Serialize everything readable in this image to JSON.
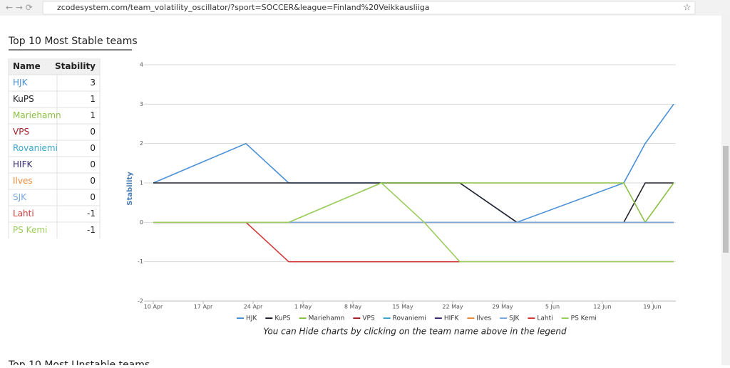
{
  "browser": {
    "url": "zcodesystem.com/team_volatility_oscillator/?sport=SOCCER&league=Finland%20Veikkausliiga"
  },
  "section_title": "Top 10 Most Stable teams",
  "table": {
    "header": [
      "Name",
      "Stability"
    ],
    "rows": [
      [
        "HJK",
        3
      ],
      [
        "KuPS",
        1
      ],
      [
        "Mariehamn",
        1
      ],
      [
        "VPS",
        0
      ],
      [
        "Rovaniemi",
        0
      ],
      [
        "HIFK",
        0
      ],
      [
        "Ilves",
        0
      ],
      [
        "SJK",
        0
      ],
      [
        "Lahti",
        -1
      ],
      [
        "PS Kemi",
        -1
      ]
    ]
  },
  "chart_data": {
    "type": "line",
    "y_label": "Stability",
    "x": [
      0,
      13,
      19,
      32,
      38,
      43,
      51,
      66,
      69,
      73
    ],
    "xlim": [
      -1,
      73
    ],
    "xticks": [
      {
        "value": 0,
        "label": "10 Apr"
      },
      {
        "value": 7,
        "label": "17 Apr"
      },
      {
        "value": 14,
        "label": "24 Apr"
      },
      {
        "value": 21,
        "label": "1 May"
      },
      {
        "value": 28,
        "label": "8 May"
      },
      {
        "value": 35,
        "label": "15 May"
      },
      {
        "value": 42,
        "label": "22 May"
      },
      {
        "value": 49,
        "label": "29 May"
      },
      {
        "value": 56,
        "label": "5 Jun"
      },
      {
        "value": 63,
        "label": "12 Jun"
      },
      {
        "value": 70,
        "label": "19 Jun"
      }
    ],
    "ylim": [
      -2,
      4
    ],
    "yticks": [
      -2,
      -1,
      0,
      1,
      2,
      3,
      4
    ],
    "grid": true,
    "series": [
      {
        "name": "HJK",
        "color": "#4a8fd6",
        "values": [
          1,
          2,
          1,
          1,
          1,
          1,
          0,
          1,
          2,
          3
        ]
      },
      {
        "name": "KuPS",
        "color": "#23232b",
        "values": [
          1,
          1,
          1,
          1,
          1,
          1,
          0,
          0,
          1,
          1
        ]
      },
      {
        "name": "Mariehamn",
        "color": "#8cc045",
        "values": [
          0,
          0,
          0,
          1,
          1,
          1,
          1,
          1,
          0,
          1
        ]
      },
      {
        "name": "VPS",
        "color": "#a3202a",
        "values": [
          0,
          0,
          0,
          0,
          0,
          0,
          0,
          0,
          0,
          0
        ]
      },
      {
        "name": "Rovaniemi",
        "color": "#3aa6c8",
        "values": [
          0,
          0,
          0,
          0,
          0,
          0,
          0,
          0,
          0,
          0
        ]
      },
      {
        "name": "HIFK",
        "color": "#3d2c70",
        "values": [
          0,
          0,
          0,
          0,
          0,
          0,
          0,
          0,
          0,
          0
        ]
      },
      {
        "name": "Ilves",
        "color": "#ea8a3c",
        "values": [
          0,
          0,
          0,
          0,
          0,
          0,
          0,
          0,
          0,
          0
        ]
      },
      {
        "name": "SJK",
        "color": "#7aa8dc",
        "values": [
          0,
          0,
          0,
          0,
          0,
          0,
          0,
          0,
          0,
          0
        ]
      },
      {
        "name": "Lahti",
        "color": "#d23a3a",
        "values": [
          0,
          0,
          -1,
          -1,
          -1,
          -1,
          -1,
          -1,
          -1,
          -1
        ]
      },
      {
        "name": "PS Kemi",
        "color": "#9ccd5f",
        "values": [
          0,
          0,
          0,
          1,
          0,
          -1,
          -1,
          -1,
          -1,
          -1
        ]
      }
    ]
  },
  "note": "You can Hide charts by clicking on the team name above in the legend",
  "next_section_title": "Top 10 Most Unstable teams"
}
